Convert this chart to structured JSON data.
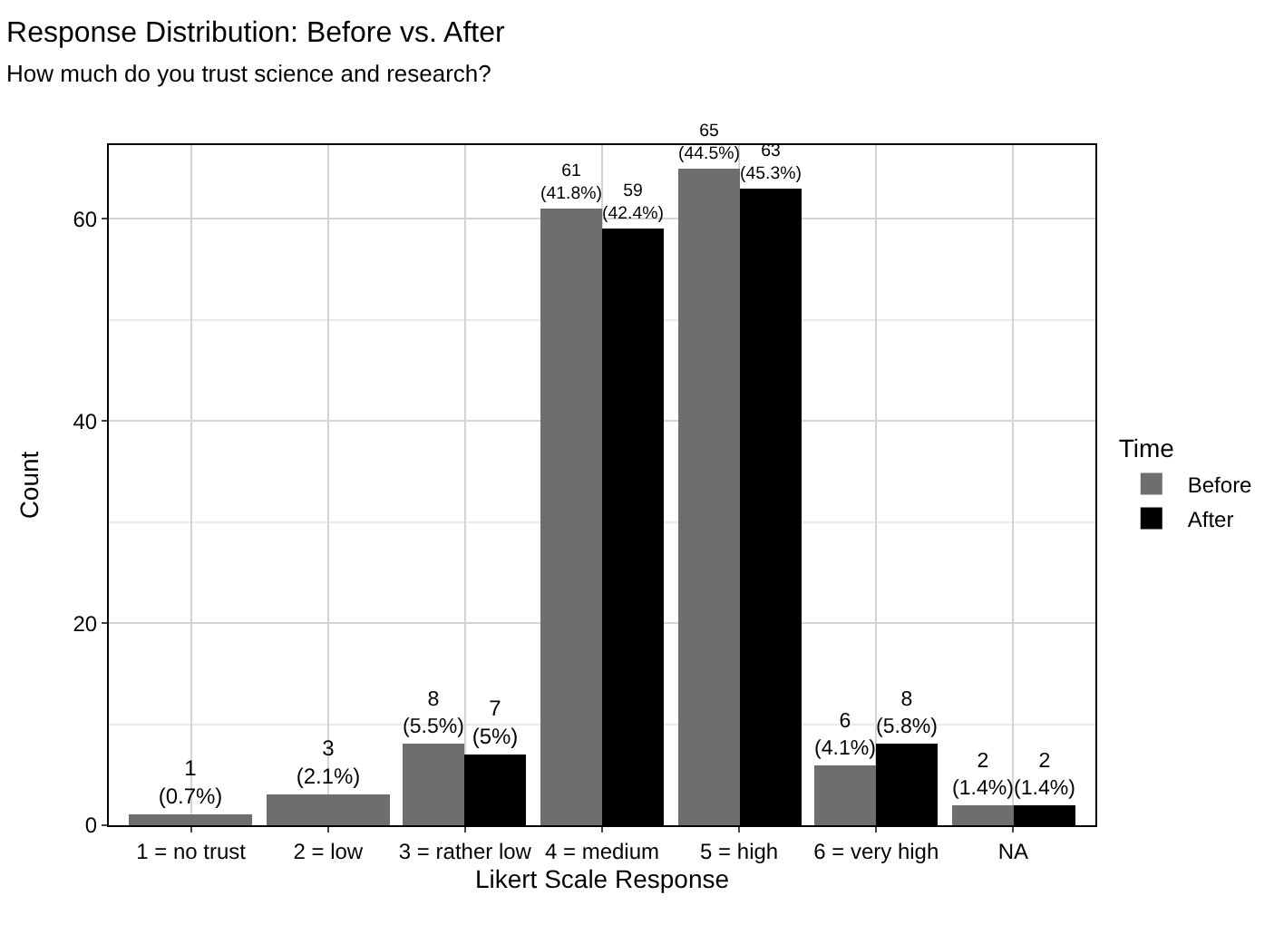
{
  "chart_data": {
    "type": "bar",
    "title": "Response Distribution: Before vs. After",
    "subtitle": "How much do you trust science and research?",
    "xlabel": "Likert Scale Response",
    "ylabel": "Count",
    "legend_title": "Time",
    "categories": [
      "1 = no trust",
      "2 = low",
      "3 = rather low",
      "4 = medium",
      "5 = high",
      "6 = very high",
      "NA"
    ],
    "series": [
      {
        "name": "Before",
        "color": "#6e6e6e",
        "values": [
          1,
          3,
          8,
          61,
          65,
          6,
          2
        ],
        "value_labels": [
          "1\n(0.7%)",
          "3\n(2.1%)",
          "8\n(5.5%)",
          "61\n(41.8%)",
          "65\n(44.5%)",
          "6\n(4.1%)",
          "2\n(1.4%)"
        ]
      },
      {
        "name": "After",
        "color": "#000000",
        "values": [
          null,
          null,
          7,
          59,
          63,
          8,
          2
        ],
        "value_labels": [
          null,
          null,
          "7\n(5%)",
          "59\n(42.4%)",
          "63\n(45.3%)",
          "8\n(5.8%)",
          "2\n(1.4%)"
        ]
      }
    ],
    "ylim": [
      0,
      67.3
    ],
    "yticks": [
      0,
      20,
      40,
      60
    ],
    "grid": true,
    "legend": "right"
  }
}
